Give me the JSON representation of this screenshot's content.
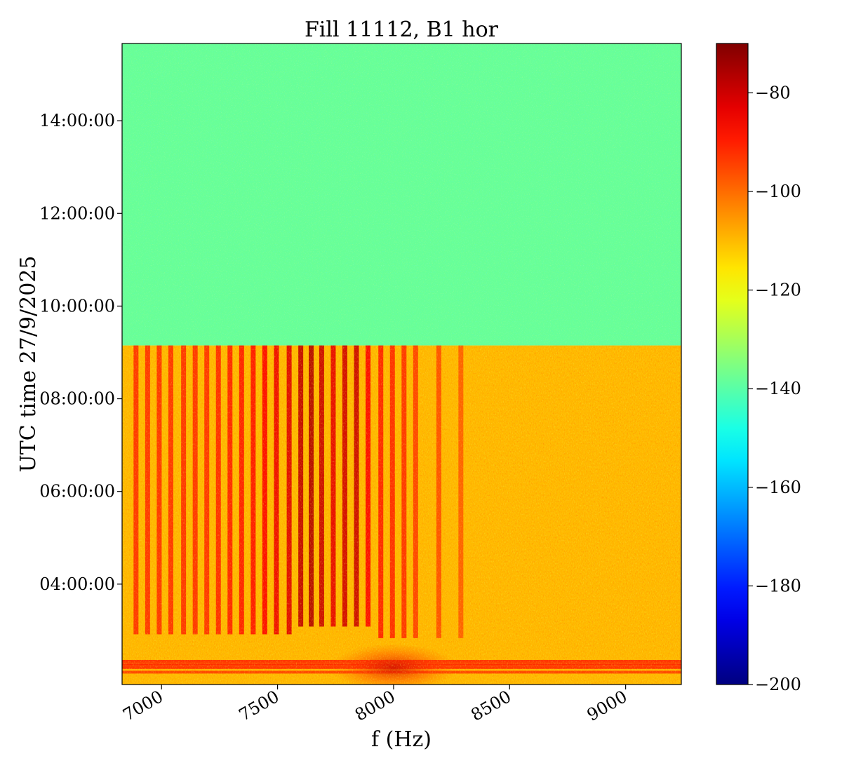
{
  "chart_data": {
    "type": "heatmap",
    "title": "Fill 11112, B1 hor",
    "xlabel": "f (Hz)",
    "ylabel": "UTC time 27/9/2025",
    "xlim": [
      6830,
      9240
    ],
    "x_ticks": [
      7000,
      7500,
      8000,
      8500,
      9000
    ],
    "x_tick_labels": [
      "7000",
      "7500",
      "8000",
      "8500",
      "9000"
    ],
    "ylim": [
      "01:50:00",
      "15:40:00"
    ],
    "y_ticks": [
      "04:00:00",
      "06:00:00",
      "08:00:00",
      "10:00:00",
      "12:00:00",
      "14:00:00"
    ],
    "y_tick_labels": [
      "04:00:00",
      "06:00:00",
      "08:00:00",
      "10:00:00",
      "12:00:00",
      "14:00:00"
    ],
    "colorbar": {
      "colormap": "jet",
      "range": [
        -200,
        -70
      ],
      "ticks": [
        -80,
        -100,
        -120,
        -140,
        -160,
        -180,
        -200
      ],
      "tick_labels": [
        "−80",
        "−100",
        "−120",
        "−140",
        "−160",
        "−180",
        "−200"
      ]
    },
    "regions": [
      {
        "time_from": "09:09:00",
        "time_to": "15:40:00",
        "level_db": -138
      },
      {
        "time_from": "01:50:00",
        "time_to": "09:09:00",
        "level_db": -110
      }
    ],
    "beam_on_until": "09:09:00",
    "spectral_lines": [
      {
        "f": 6890,
        "level_db": -92,
        "start": "02:55:00"
      },
      {
        "f": 6940,
        "level_db": -92,
        "start": "02:55:00"
      },
      {
        "f": 6990,
        "level_db": -92,
        "start": "02:55:00"
      },
      {
        "f": 7040,
        "level_db": -92,
        "start": "02:55:00"
      },
      {
        "f": 7095,
        "level_db": -92,
        "start": "02:55:00"
      },
      {
        "f": 7145,
        "level_db": -92,
        "start": "02:55:00"
      },
      {
        "f": 7195,
        "level_db": -92,
        "start": "02:55:00"
      },
      {
        "f": 7245,
        "level_db": -91,
        "start": "02:55:00"
      },
      {
        "f": 7295,
        "level_db": -90,
        "start": "02:55:00"
      },
      {
        "f": 7345,
        "level_db": -89,
        "start": "02:55:00"
      },
      {
        "f": 7395,
        "level_db": -88,
        "start": "02:55:00"
      },
      {
        "f": 7445,
        "level_db": -86,
        "start": "02:55:00"
      },
      {
        "f": 7495,
        "level_db": -84,
        "start": "02:55:00"
      },
      {
        "f": 7550,
        "level_db": -82,
        "start": "02:55:00"
      },
      {
        "f": 7600,
        "level_db": -78,
        "start": "03:05:00"
      },
      {
        "f": 7645,
        "level_db": -76,
        "start": "03:05:00"
      },
      {
        "f": 7690,
        "level_db": -79,
        "start": "03:05:00"
      },
      {
        "f": 7740,
        "level_db": -83,
        "start": "03:05:00"
      },
      {
        "f": 7790,
        "level_db": -80,
        "start": "03:05:00"
      },
      {
        "f": 7840,
        "level_db": -79,
        "start": "03:05:00"
      },
      {
        "f": 7890,
        "level_db": -86,
        "start": "03:05:00"
      },
      {
        "f": 7945,
        "level_db": -90,
        "start": "02:50:00"
      },
      {
        "f": 7995,
        "level_db": -91,
        "start": "02:50:00"
      },
      {
        "f": 8045,
        "level_db": -92,
        "start": "02:50:00"
      },
      {
        "f": 8095,
        "level_db": -94,
        "start": "02:50:00"
      },
      {
        "f": 8195,
        "level_db": -96,
        "start": "02:50:00"
      },
      {
        "f": 8290,
        "level_db": -98,
        "start": "02:50:00"
      }
    ],
    "horizontal_bands": [
      {
        "time": "02:20:00",
        "level_db": -90
      },
      {
        "time": "02:16:00",
        "level_db": -88
      },
      {
        "time": "02:12:00",
        "level_db": -90
      },
      {
        "time": "02:06:00",
        "level_db": -93
      }
    ],
    "hotspot": {
      "f": 8000,
      "time": "02:12:00",
      "level_db": -84
    }
  }
}
